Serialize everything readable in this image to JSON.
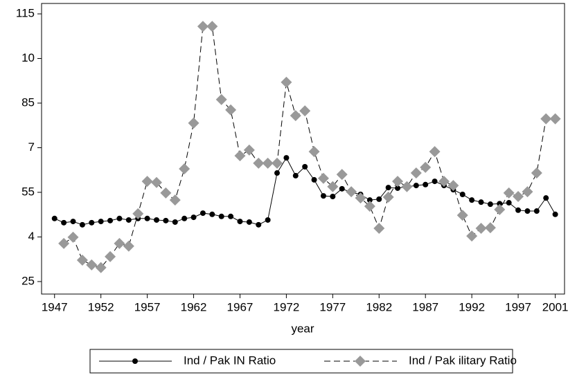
{
  "chart_data": {
    "type": "line",
    "x_label": "year",
    "x": [
      1947,
      1948,
      1949,
      1950,
      1951,
      1952,
      1953,
      1954,
      1955,
      1956,
      1957,
      1958,
      1959,
      1960,
      1961,
      1962,
      1963,
      1964,
      1965,
      1966,
      1967,
      1968,
      1969,
      1970,
      1971,
      1972,
      1973,
      1974,
      1975,
      1976,
      1977,
      1978,
      1979,
      1980,
      1981,
      1982,
      1983,
      1984,
      1985,
      1986,
      1987,
      1988,
      1989,
      1990,
      1991,
      1992,
      1993,
      1994,
      1995,
      1996,
      1997,
      1998,
      1999,
      2000,
      2001
    ],
    "series": [
      {
        "name": "Ind / Pak IN Ratio",
        "color": "#000000",
        "marker": "circle",
        "dashed": false,
        "values": [
          46.2,
          44.8,
          45.2,
          44.1,
          44.8,
          45.2,
          45.5,
          46.2,
          45.7,
          46.2,
          46.2,
          45.7,
          45.5,
          45.0,
          46.2,
          46.6,
          48.0,
          47.6,
          46.9,
          46.9,
          45.2,
          45.0,
          44.1,
          45.7,
          61.5,
          66.6,
          60.6,
          63.6,
          59.2,
          53.8,
          53.6,
          56.2,
          55.0,
          54.3,
          52.4,
          52.7,
          56.6,
          56.4,
          56.9,
          57.3,
          57.6,
          58.7,
          57.3,
          55.9,
          54.3,
          52.4,
          51.7,
          51.0,
          51.2,
          51.5,
          49.0,
          48.7,
          48.7,
          53.1,
          47.6
        ]
      },
      {
        "name": "Ind / Pak ilitary Ratio",
        "color": "#999999",
        "marker": "diamond",
        "dashed": true,
        "values": [
          null,
          37.8,
          39.9,
          32.2,
          30.6,
          29.7,
          33.4,
          37.8,
          36.9,
          47.8,
          58.7,
          58.3,
          54.8,
          52.4,
          62.9,
          78.3,
          110.8,
          110.8,
          86.2,
          82.7,
          67.3,
          69.2,
          64.8,
          64.8,
          64.8,
          92.0,
          80.8,
          82.4,
          68.7,
          59.7,
          56.9,
          61.0,
          55.2,
          53.1,
          50.3,
          42.9,
          53.4,
          58.7,
          56.9,
          61.5,
          63.4,
          68.7,
          58.7,
          57.3,
          47.3,
          40.3,
          42.9,
          43.1,
          49.2,
          54.8,
          53.6,
          55.2,
          61.5,
          79.7,
          79.7
        ]
      }
    ],
    "xlim": [
      1945.6,
      2002
    ],
    "xticks": [
      1947,
      1952,
      1957,
      1962,
      1967,
      1972,
      1977,
      1982,
      1987,
      1992,
      1997,
      2001
    ],
    "ylim": [
      20.8,
      118.5
    ],
    "yticks": [
      25,
      {
        "value": 40,
        "label": "4"
      },
      55,
      {
        "value": 70,
        "label": "7"
      },
      85,
      {
        "value": 100,
        "label": "10"
      },
      115
    ],
    "grid": false,
    "legend": "bottom"
  }
}
